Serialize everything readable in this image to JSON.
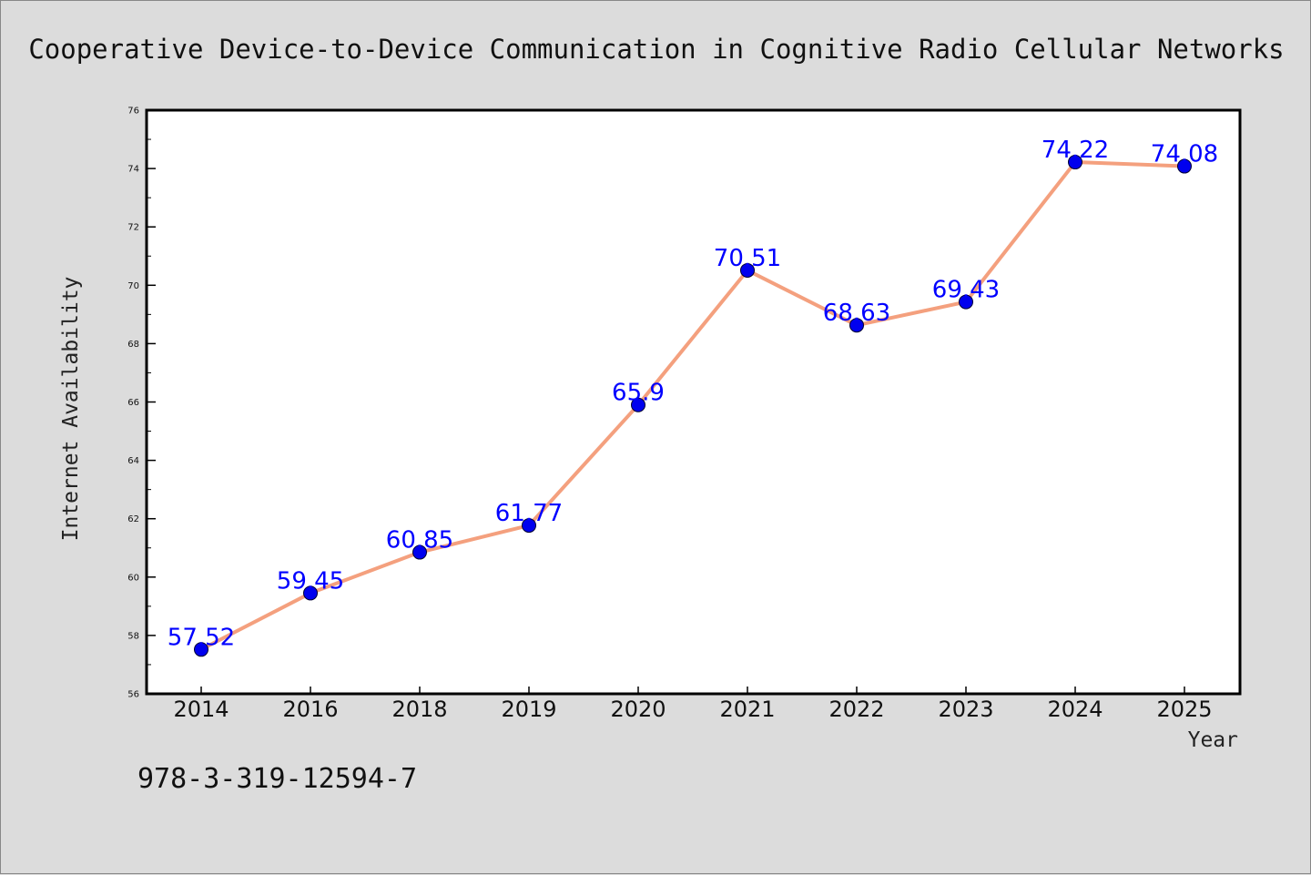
{
  "chart_data": {
    "type": "line",
    "title": "Cooperative Device-to-Device Communication in Cognitive Radio Cellular Networks",
    "xlabel": "Year",
    "ylabel": "Internet Availability",
    "categories": [
      "2014",
      "2016",
      "2018",
      "2019",
      "2020",
      "2021",
      "2022",
      "2023",
      "2024",
      "2025"
    ],
    "series": [
      {
        "values": [
          57.52,
          59.45,
          60.85,
          61.77,
          65.9,
          70.51,
          68.63,
          69.43,
          74.22,
          74.08
        ],
        "data_labels": [
          "57.52",
          "59.45",
          "60.85",
          "61.77",
          "65.9",
          "70.51",
          "68.63",
          "69.43",
          "74.22",
          "74.08"
        ],
        "line_color": "#f4a07e",
        "marker_color": "#0000ee",
        "label_color": "#0000ff"
      }
    ],
    "ylim": [
      56,
      76
    ],
    "yticks": [
      56,
      58,
      60,
      62,
      64,
      66,
      68,
      70,
      72,
      74,
      76
    ],
    "grid": false,
    "legend": "none",
    "footer_text": "978-3-319-12594-7"
  }
}
